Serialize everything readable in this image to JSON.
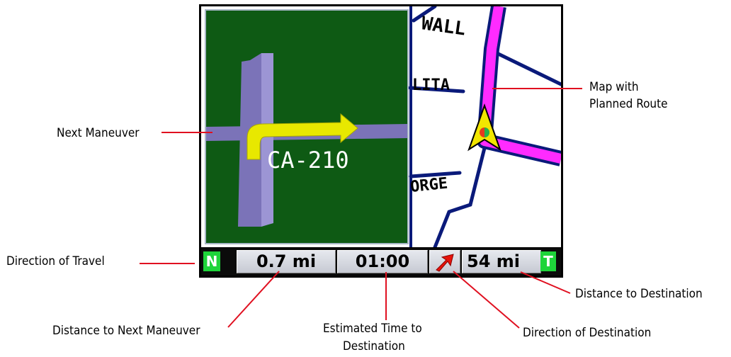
{
  "device": {
    "maneuver_road": "CA-210",
    "map_labels": [
      "WALL",
      "LITA",
      "ORGE"
    ],
    "status": {
      "direction_letter": "N",
      "distance_next": "0.7 mi",
      "eta": "01:00",
      "distance_dest": "54 mi",
      "mode_letter": "T"
    },
    "colors": {
      "maneuver_bg": "#0e5a14",
      "route": "#ff2bff",
      "road": "#0a1a7a",
      "arrow": "#e8e800",
      "indicator": "#1ed43a"
    }
  },
  "callouts": {
    "next_maneuver": "Next Maneuver",
    "map_route_line1": "Map with",
    "map_route_line2": "Planned Route",
    "direction_travel": "Direction of Travel",
    "distance_next": "Distance to Next Maneuver",
    "eta_line1": "Estimated Time to",
    "eta_line2": "Destination",
    "direction_dest": "Direction of Destination",
    "distance_dest": "Distance to Destination"
  }
}
